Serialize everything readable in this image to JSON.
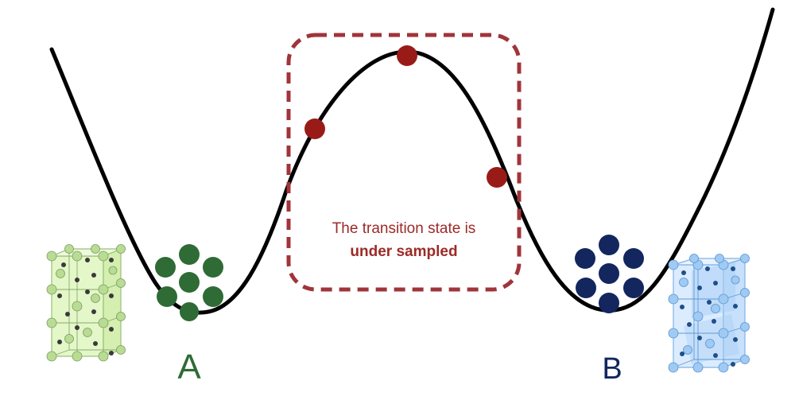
{
  "annotation": {
    "line1": "The transition state is",
    "line2": "under sampled"
  },
  "states": {
    "a_label": "A",
    "b_label": "B"
  },
  "colors": {
    "curve": "#000000",
    "state_a": "#2e6b35",
    "state_b": "#13265e",
    "transition_points": "#991b17",
    "annotation_box": "#a0343a",
    "annotation_text": "#9c2a27",
    "crystal_a_fill": "#e4f7c8",
    "crystal_b_fill": "#dcecff"
  },
  "icons": {
    "crystal_a": "crystal-lattice-icon",
    "crystal_b": "crystal-lattice-icon"
  }
}
